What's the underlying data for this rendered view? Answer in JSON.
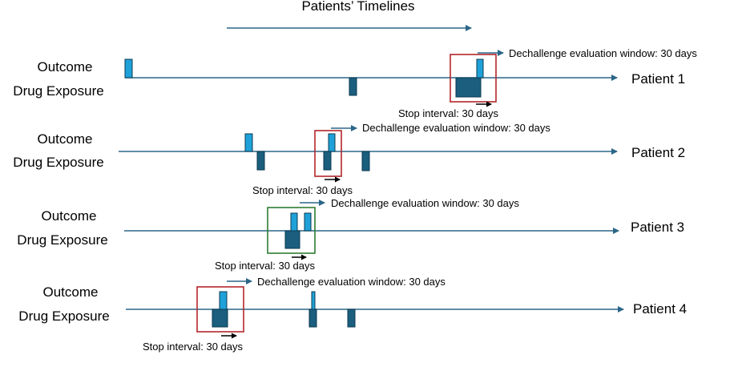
{
  "title": "Patients’ Timelines",
  "labels": {
    "outcome": "Outcome",
    "drug_exposure": "Drug Exposure",
    "dechallenge": "Dechallenge evaluation window: 30 days",
    "stop_interval": "Stop interval: 30 days"
  },
  "colors": {
    "timeline": "#2b6688",
    "outcome_fill": "#1ea1d8",
    "drug_fill": "#1b5e7e",
    "box_red": "#b3262b",
    "box_green": "#2e7d32",
    "stroke": "#0b3a52"
  },
  "patients": [
    {
      "name": "Patient 1",
      "box_color": "red"
    },
    {
      "name": "Patient 2",
      "box_color": "red"
    },
    {
      "name": "Patient 3",
      "box_color": "green"
    },
    {
      "name": "Patient 4",
      "box_color": "red"
    }
  ]
}
